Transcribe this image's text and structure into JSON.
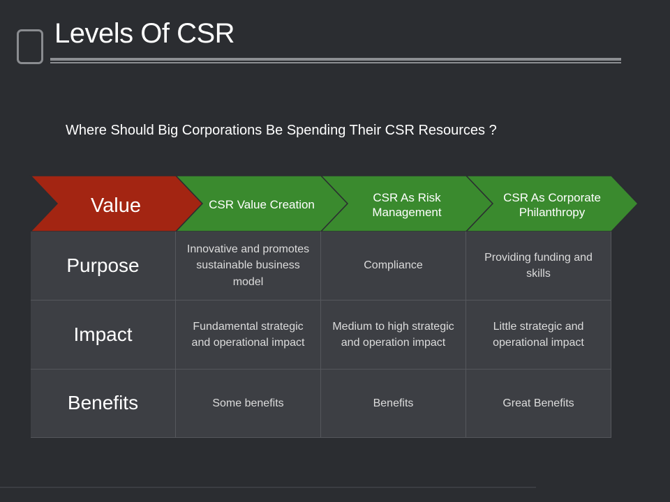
{
  "slide": {
    "title": "Levels Of CSR",
    "subtitle": "Where Should Big Corporations Be Spending Their CSR Resources ?"
  },
  "colors": {
    "value_chevron": "#a32512",
    "header_chevron": "#3a8a2e",
    "cell_bg": "#3d3f44",
    "background": "#2b2d31"
  },
  "table": {
    "corner_label": "Value",
    "columns": [
      "CSR Value Creation",
      "CSR As Risk Management",
      "CSR As Corporate Philanthropy"
    ],
    "rows": [
      {
        "label": "Purpose",
        "cells": [
          "Innovative and promotes sustainable business model",
          "Compliance",
          "Providing funding and skills"
        ]
      },
      {
        "label": "Impact",
        "cells": [
          "Fundamental strategic and operational impact",
          "Medium to high strategic and operation impact",
          "Little strategic and operational impact"
        ]
      },
      {
        "label": "Benefits",
        "cells": [
          "Some benefits",
          "Benefits",
          "Great Benefits"
        ]
      }
    ]
  }
}
